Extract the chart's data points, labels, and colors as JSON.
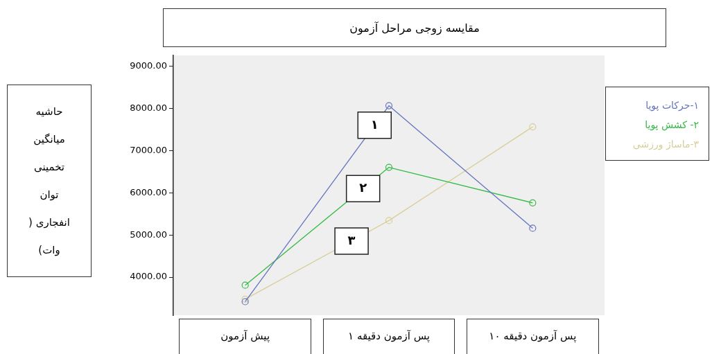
{
  "chart_data": {
    "type": "line",
    "title": "مقایسه زوجی مراحل آزمون",
    "ylabel": "حاشیه میانگین تخمینی توان انفجاری ( وات)",
    "categories": [
      "پیش آزمون",
      "پس آزمون دقیقه ۱",
      "پس آزمون دقیقه ۱۰"
    ],
    "series": [
      {
        "name": "۱-حرکات پویا",
        "color": "#6674c0",
        "values": [
          3420,
          8060,
          5160
        ]
      },
      {
        "name": "۲- کشش پویا",
        "color": "#33bb44",
        "values": [
          3810,
          6600,
          5760
        ]
      },
      {
        "name": "۳-ماساژ ورزشی",
        "color": "#d8cf98",
        "values": [
          3480,
          5340,
          7560
        ]
      }
    ],
    "ylim": [
      3100,
      9250
    ],
    "yticks": [
      {
        "value": 4000,
        "label": "4000.00"
      },
      {
        "value": 5000,
        "label": "5000.00"
      },
      {
        "value": 6000,
        "label": "6000.00"
      },
      {
        "value": 7000,
        "label": "7000.00"
      },
      {
        "value": 8000,
        "label": "8000.00"
      },
      {
        "value": 9000,
        "label": "9000.00"
      }
    ],
    "annotations": [
      "۱",
      "۲",
      "۳"
    ],
    "grid": false,
    "legend": "right",
    "marker": "circle",
    "line_style": "solid"
  }
}
